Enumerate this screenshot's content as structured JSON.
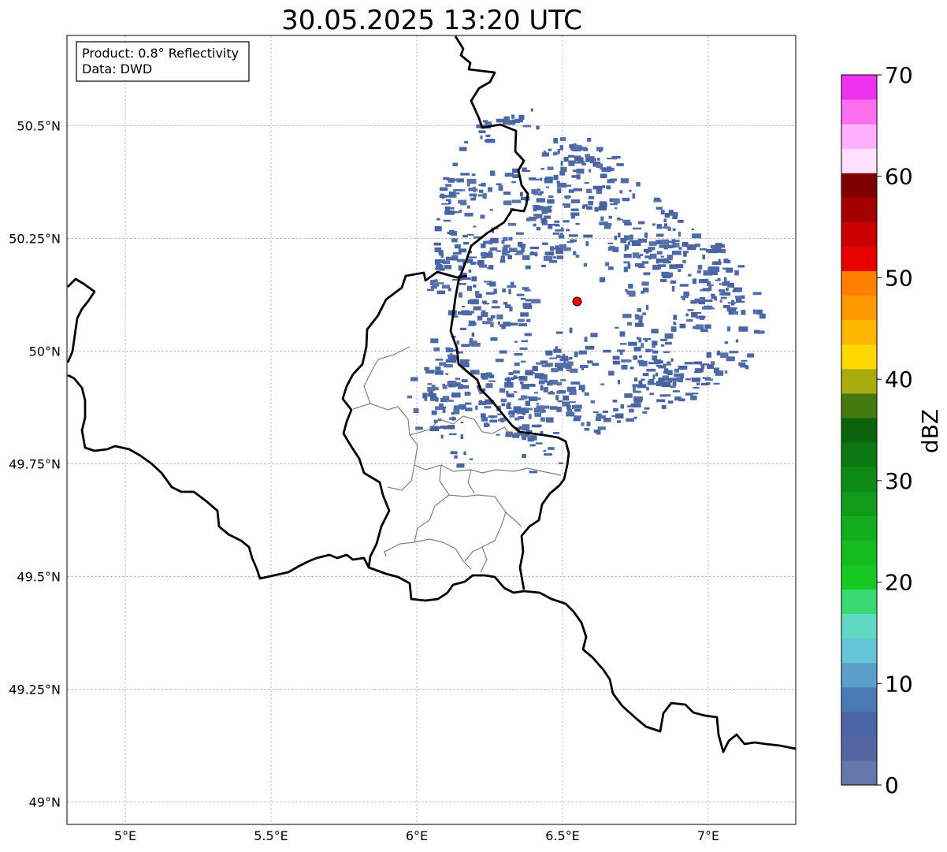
{
  "title": "30.05.2025 13:20 UTC",
  "info_box": {
    "product_line": "Product: 0.8° Reflectivity",
    "source_line": "Data: DWD"
  },
  "map": {
    "x_ticks": [
      "5°E",
      "5.5°E",
      "6°E",
      "6.5°E",
      "7°E"
    ],
    "y_ticks": [
      "50.5°N",
      "50.25°N",
      "50°N",
      "49.75°N",
      "49.5°N",
      "49.25°N",
      "49°N"
    ],
    "extent": {
      "lon": [
        4.8,
        7.3
      ],
      "lat": [
        48.95,
        50.7
      ]
    },
    "gridlines": true,
    "radar_site": {
      "lon": 6.55,
      "lat": 50.11,
      "color": "#ff0000"
    },
    "echo_color": "#4a6aa8",
    "border_color": "#000000",
    "district_color": "#808080"
  },
  "colorbar": {
    "label": "dBZ",
    "ticks": [
      "0",
      "10",
      "20",
      "30",
      "40",
      "50",
      "60",
      "70"
    ],
    "range": [
      0,
      70
    ],
    "step": 2.5,
    "colors": [
      "#6677aa",
      "#5566a0",
      "#4a64a6",
      "#4b7ab2",
      "#5b9ec8",
      "#66c4d8",
      "#60d8c4",
      "#3ad872",
      "#16c822",
      "#14bc20",
      "#12ac1c",
      "#109c1a",
      "#0e8a16",
      "#0c7812",
      "#0a640e",
      "#457a10",
      "#a8ac0c",
      "#ffd800",
      "#ffb800",
      "#ff9900",
      "#ff8000",
      "#e80000",
      "#c80000",
      "#a40000",
      "#800000",
      "#ffe0ff",
      "#ffb0ff",
      "#ff70f0",
      "#ee33ee"
    ]
  }
}
